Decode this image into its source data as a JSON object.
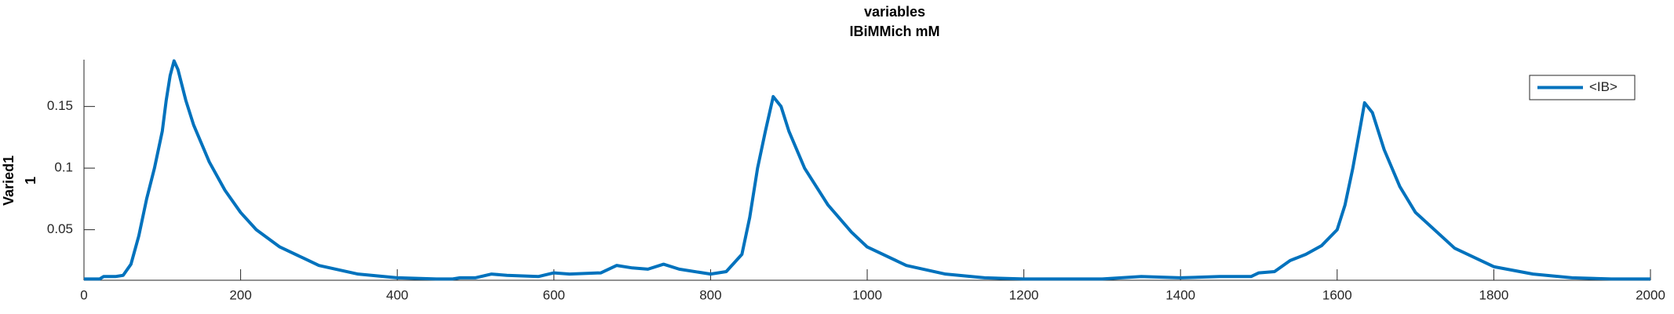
{
  "chart_data": {
    "type": "line",
    "title": "variables",
    "subtitle": "IBiMMich mM",
    "ylabel": [
      "Varied1",
      "1"
    ],
    "x": [
      0,
      20,
      25,
      40,
      50,
      60,
      70,
      80,
      90,
      100,
      105,
      110,
      115,
      120,
      130,
      140,
      160,
      180,
      200,
      220,
      250,
      280,
      300,
      350,
      400,
      450,
      470,
      480,
      500,
      520,
      540,
      580,
      600,
      620,
      660,
      680,
      700,
      720,
      740,
      760,
      800,
      820,
      840,
      850,
      860,
      870,
      880,
      890,
      900,
      920,
      950,
      980,
      1000,
      1050,
      1100,
      1150,
      1200,
      1300,
      1350,
      1400,
      1450,
      1490,
      1500,
      1520,
      1540,
      1560,
      1580,
      1600,
      1610,
      1620,
      1630,
      1635,
      1645,
      1660,
      1680,
      1700,
      1750,
      1800,
      1850,
      1900,
      1950,
      2000
    ],
    "series": [
      {
        "name": "<IB>",
        "color": "#0072bd",
        "values": [
          0.01,
          0.01,
          0.012,
          0.012,
          0.013,
          0.022,
          0.045,
          0.075,
          0.1,
          0.13,
          0.155,
          0.175,
          0.187,
          0.18,
          0.155,
          0.135,
          0.105,
          0.082,
          0.064,
          0.05,
          0.036,
          0.027,
          0.021,
          0.014,
          0.011,
          0.01,
          0.01,
          0.011,
          0.011,
          0.014,
          0.013,
          0.012,
          0.015,
          0.014,
          0.015,
          0.021,
          0.019,
          0.018,
          0.022,
          0.018,
          0.014,
          0.016,
          0.03,
          0.06,
          0.1,
          0.13,
          0.158,
          0.15,
          0.13,
          0.1,
          0.07,
          0.048,
          0.036,
          0.021,
          0.014,
          0.011,
          0.01,
          0.01,
          0.012,
          0.011,
          0.012,
          0.012,
          0.015,
          0.016,
          0.025,
          0.03,
          0.037,
          0.05,
          0.07,
          0.1,
          0.135,
          0.153,
          0.145,
          0.115,
          0.085,
          0.064,
          0.035,
          0.02,
          0.014,
          0.011,
          0.01,
          0.01
        ]
      }
    ],
    "xlim": [
      0,
      2000
    ],
    "xticks": [
      0,
      200,
      400,
      600,
      800,
      1000,
      1200,
      1400,
      1600,
      1800,
      2000
    ],
    "ylim": [
      0.009,
      0.188
    ],
    "yticks": [
      0.05,
      0.1,
      0.15
    ],
    "legend": "upper right",
    "grid": false
  }
}
